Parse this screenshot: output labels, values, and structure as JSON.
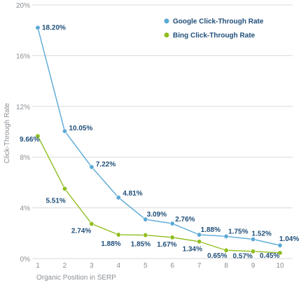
{
  "chart_data": {
    "type": "line",
    "title": "",
    "xlabel": "Organic Position in SERP",
    "ylabel": "Click-Through Rate",
    "x": [
      1,
      2,
      3,
      4,
      5,
      6,
      7,
      8,
      9,
      10
    ],
    "ylim": [
      0,
      20
    ],
    "yticks": [
      0,
      4,
      8,
      12,
      16,
      20
    ],
    "ytick_labels": [
      "0%",
      "4%",
      "8%",
      "12%",
      "16%",
      "20%"
    ],
    "grid": true,
    "legend_position": "top-right",
    "series": [
      {
        "name": "Google Click-Through Rate",
        "color": "#5aa9d6",
        "values": [
          18.2,
          10.05,
          7.22,
          4.81,
          3.09,
          2.76,
          1.88,
          1.75,
          1.52,
          1.04
        ],
        "labels": [
          "18.20%",
          "10.05%",
          "7.22%",
          "4.81%",
          "3.09%",
          "2.76%",
          "1.88%",
          "1.75%",
          "1.52%",
          "1.04%"
        ]
      },
      {
        "name": "Bing Click-Through Rate",
        "color": "#8fbe1e",
        "values": [
          9.66,
          5.51,
          2.74,
          1.88,
          1.85,
          1.67,
          1.34,
          0.65,
          0.57,
          0.45
        ],
        "labels": [
          "9.66%",
          "5.51%",
          "2.74%",
          "1.88%",
          "1.85%",
          "1.67%",
          "1.34%",
          "0.65%",
          "0.57%",
          "0.45%"
        ]
      }
    ],
    "label_color": "#1f4e79",
    "grid_color": "#d9d9d9"
  }
}
